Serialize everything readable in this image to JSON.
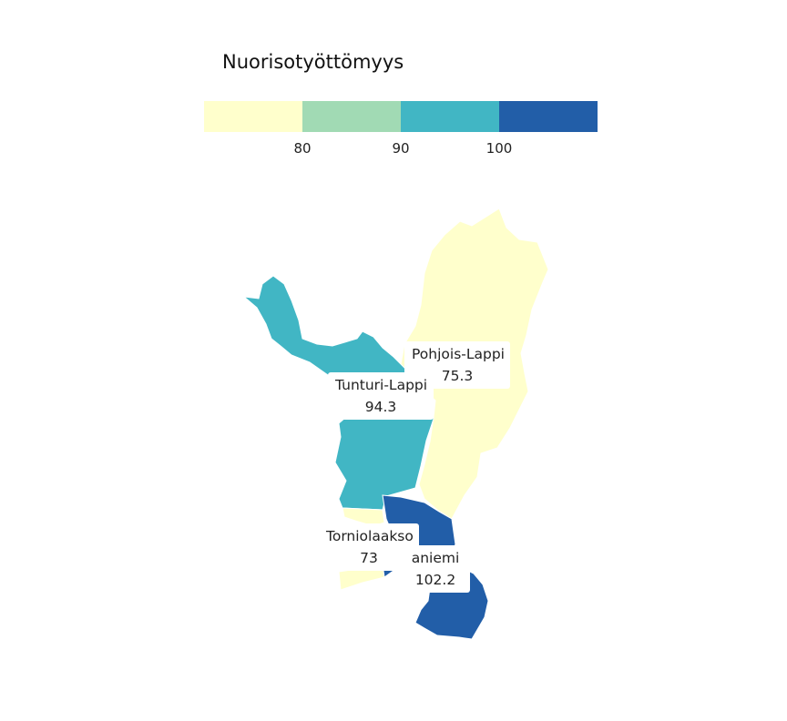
{
  "legend": {
    "title": "Nuorisotyöttömyys",
    "colors": [
      "#ffffcc",
      "#a1dab4",
      "#41b6c4",
      "#225ea8"
    ],
    "ticks": [
      "80",
      "90",
      "100"
    ]
  },
  "regions": [
    {
      "name": "Pohjois-Lappi",
      "value": "75.3",
      "color": "#ffffcc"
    },
    {
      "name": "Tunturi-Lappi",
      "value": "94.3",
      "color": "#41b6c4"
    },
    {
      "name": "Torniolaakso",
      "value": "73",
      "color": "#ffffcc"
    },
    {
      "name": "aniemi",
      "value": "102.2",
      "color": "#225ea8"
    }
  ]
}
